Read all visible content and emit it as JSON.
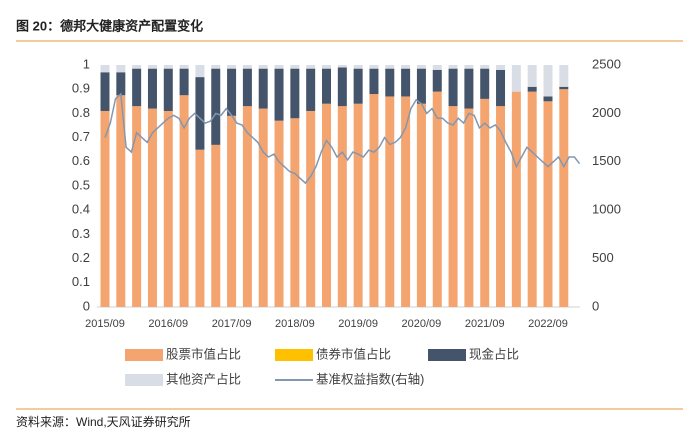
{
  "chart_data": {
    "type": "bar",
    "stacked": true,
    "title": "图 20：德邦大健康资产配置变化",
    "source": "资料来源：Wind,天风证券研究所",
    "x": [
      "2015/09",
      "2015/12",
      "2016/03",
      "2016/06",
      "2016/09",
      "2016/12",
      "2017/03",
      "2017/06",
      "2017/09",
      "2017/12",
      "2018/03",
      "2018/06",
      "2018/09",
      "2018/12",
      "2019/03",
      "2019/06",
      "2019/09",
      "2019/12",
      "2020/03",
      "2020/06",
      "2020/09",
      "2020/12",
      "2021/03",
      "2021/06",
      "2021/09",
      "2021/12",
      "2022/03",
      "2022/06",
      "2022/09",
      "2022/12"
    ],
    "xticks": [
      "2015/09",
      "2016/09",
      "2017/09",
      "2018/09",
      "2019/09",
      "2020/09",
      "2021/09",
      "2022/09"
    ],
    "ylim": [
      0,
      1
    ],
    "yticks": [
      0,
      0.1,
      0.2,
      0.3,
      0.4,
      0.5,
      0.6,
      0.7,
      0.8,
      0.9,
      1
    ],
    "y2lim": [
      0,
      2500
    ],
    "y2ticks": [
      0,
      500,
      1000,
      1500,
      2000,
      2500
    ],
    "series": [
      {
        "name": "股票市值占比",
        "color": "#F4A46E",
        "values": [
          0.81,
          0.875,
          0.83,
          0.82,
          0.81,
          0.875,
          0.65,
          0.67,
          0.79,
          0.83,
          0.82,
          0.77,
          0.78,
          0.81,
          0.84,
          0.83,
          0.84,
          0.88,
          0.87,
          0.87,
          0.84,
          0.89,
          0.83,
          0.82,
          0.86,
          0.83,
          0.89,
          0.89,
          0.85,
          0.9
        ]
      },
      {
        "name": "债券市值占比",
        "color": "#FFC000",
        "values": [
          0,
          0,
          0,
          0,
          0,
          0,
          0,
          0,
          0,
          0,
          0,
          0,
          0,
          0,
          0,
          0,
          0,
          0,
          0,
          0,
          0,
          0,
          0,
          0,
          0,
          0,
          0,
          0,
          0,
          0
        ]
      },
      {
        "name": "现金占比",
        "color": "#44546A",
        "values": [
          0.16,
          0.095,
          0.155,
          0.165,
          0.175,
          0.11,
          0.3,
          0.315,
          0.195,
          0.155,
          0.165,
          0.215,
          0.205,
          0.175,
          0.145,
          0.16,
          0.145,
          0.105,
          0.115,
          0.115,
          0.145,
          0.09,
          0.155,
          0.165,
          0.125,
          0.15,
          0,
          0.02,
          0.02,
          0.01
        ]
      },
      {
        "name": "其他资产占比",
        "color": "#D9DEE6",
        "values": [
          0.03,
          0.03,
          0.015,
          0.015,
          0.015,
          0.015,
          0.05,
          0.015,
          0.015,
          0.015,
          0.015,
          0.015,
          0.015,
          0.015,
          0.015,
          0.01,
          0.015,
          0.015,
          0.015,
          0.015,
          0.015,
          0.02,
          0.015,
          0.015,
          0.015,
          0.02,
          0.11,
          0.09,
          0.13,
          0.09
        ]
      },
      {
        "name": "基准权益指数(右轴)",
        "color": "#8497B0",
        "type": "line",
        "axis": "y2",
        "x": [
          "2015/09",
          "2015/10",
          "2015/11",
          "2015/12",
          "2016/01",
          "2016/02",
          "2016/03",
          "2016/04",
          "2016/05",
          "2016/06",
          "2016/07",
          "2016/08",
          "2016/09",
          "2016/10",
          "2016/11",
          "2016/12",
          "2017/01",
          "2017/02",
          "2017/03",
          "2017/04",
          "2017/05",
          "2017/06",
          "2017/07",
          "2017/08",
          "2017/09",
          "2017/10",
          "2017/11",
          "2017/12",
          "2018/01",
          "2018/02",
          "2018/03",
          "2018/04",
          "2018/05",
          "2018/06",
          "2018/07",
          "2018/08",
          "2018/09",
          "2018/10",
          "2018/11",
          "2018/12",
          "2019/01",
          "2019/02",
          "2019/03",
          "2019/04",
          "2019/05",
          "2019/06",
          "2019/07",
          "2019/08",
          "2019/09",
          "2019/10",
          "2019/11",
          "2019/12",
          "2020/01",
          "2020/02",
          "2020/03",
          "2020/04",
          "2020/05",
          "2020/06",
          "2020/07",
          "2020/08",
          "2020/09",
          "2020/10",
          "2020/11",
          "2020/12",
          "2021/01",
          "2021/02",
          "2021/03",
          "2021/04",
          "2021/05",
          "2021/06",
          "2021/07",
          "2021/08",
          "2021/09",
          "2021/10",
          "2021/11",
          "2021/12",
          "2022/01",
          "2022/02",
          "2022/03",
          "2022/04",
          "2022/05",
          "2022/06",
          "2022/07",
          "2022/08",
          "2022/09",
          "2022/10",
          "2022/11",
          "2022/12",
          "2023/01",
          "2023/02",
          "2023/03"
        ],
        "values": [
          1750,
          1900,
          2150,
          2200,
          1650,
          1600,
          1800,
          1750,
          1700,
          1800,
          1850,
          1900,
          1950,
          1980,
          1950,
          1850,
          1950,
          2000,
          1950,
          1900,
          1920,
          2000,
          1980,
          2050,
          1980,
          1900,
          1880,
          1800,
          1750,
          1700,
          1600,
          1550,
          1580,
          1500,
          1450,
          1400,
          1380,
          1330,
          1280,
          1350,
          1450,
          1600,
          1720,
          1650,
          1550,
          1600,
          1520,
          1600,
          1580,
          1550,
          1620,
          1600,
          1650,
          1750,
          1680,
          1700,
          1750,
          1850,
          2050,
          2140,
          2100,
          2000,
          2050,
          1950,
          1950,
          1900,
          1880,
          1950,
          1900,
          2000,
          1980,
          1850,
          1900,
          1850,
          1880,
          1820,
          1700,
          1600,
          1450,
          1550,
          1650,
          1600,
          1550,
          1500,
          1450,
          1500,
          1550,
          1450,
          1550,
          1550,
          1480
        ]
      }
    ]
  }
}
